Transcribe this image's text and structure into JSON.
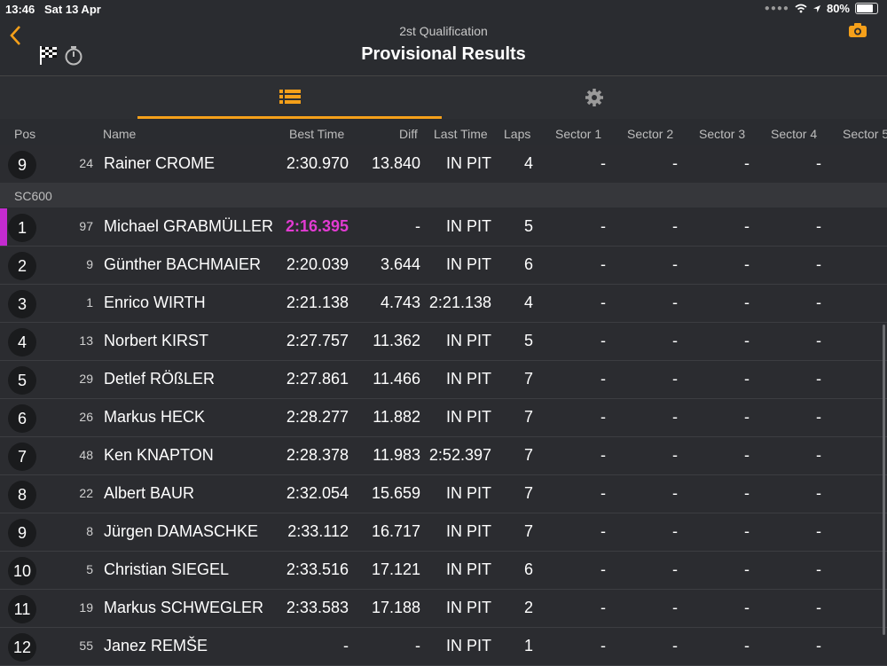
{
  "status": {
    "time": "13:46",
    "date": "Sat 13 Apr",
    "battery": "80%",
    "battery_level": 0.8
  },
  "header": {
    "subtitle": "2st Qualification",
    "title": "Provisional Results"
  },
  "columns": {
    "pos": "Pos",
    "name": "Name",
    "best": "Best Time",
    "diff": "Diff",
    "last": "Last Time",
    "laps": "Laps",
    "s1": "Sector 1",
    "s2": "Sector 2",
    "s3": "Sector 3",
    "s4": "Sector 4",
    "s5": "Sector 5"
  },
  "top_row": {
    "pos": "9",
    "num": "24",
    "name": "Rainer CROME",
    "best": "2:30.970",
    "diff": "13.840",
    "last": "IN PIT",
    "laps": "4",
    "s1": "-",
    "s2": "-",
    "s3": "-",
    "s4": "-"
  },
  "section": "SC600",
  "rows": [
    {
      "pos": "1",
      "num": "97",
      "name": "Michael GRABMÜLLER",
      "best": "2:16.395",
      "diff": "-",
      "last": "IN PIT",
      "laps": "5",
      "s1": "-",
      "s2": "-",
      "s3": "-",
      "s4": "-"
    },
    {
      "pos": "2",
      "num": "9",
      "name": "Günther BACHMAIER",
      "best": "2:20.039",
      "diff": "3.644",
      "last": "IN PIT",
      "laps": "6",
      "s1": "-",
      "s2": "-",
      "s3": "-",
      "s4": "-"
    },
    {
      "pos": "3",
      "num": "1",
      "name": "Enrico WIRTH",
      "best": "2:21.138",
      "diff": "4.743",
      "last": "2:21.138",
      "laps": "4",
      "s1": "-",
      "s2": "-",
      "s3": "-",
      "s4": "-"
    },
    {
      "pos": "4",
      "num": "13",
      "name": "Norbert KIRST",
      "best": "2:27.757",
      "diff": "11.362",
      "last": "IN PIT",
      "laps": "5",
      "s1": "-",
      "s2": "-",
      "s3": "-",
      "s4": "-"
    },
    {
      "pos": "5",
      "num": "29",
      "name": "Detlef RÖßLER",
      "best": "2:27.861",
      "diff": "11.466",
      "last": "IN PIT",
      "laps": "7",
      "s1": "-",
      "s2": "-",
      "s3": "-",
      "s4": "-"
    },
    {
      "pos": "6",
      "num": "26",
      "name": "Markus HECK",
      "best": "2:28.277",
      "diff": "11.882",
      "last": "IN PIT",
      "laps": "7",
      "s1": "-",
      "s2": "-",
      "s3": "-",
      "s4": "-"
    },
    {
      "pos": "7",
      "num": "48",
      "name": "Ken KNAPTON",
      "best": "2:28.378",
      "diff": "11.983",
      "last": "2:52.397",
      "laps": "7",
      "s1": "-",
      "s2": "-",
      "s3": "-",
      "s4": "-"
    },
    {
      "pos": "8",
      "num": "22",
      "name": "Albert BAUR",
      "best": "2:32.054",
      "diff": "15.659",
      "last": "IN PIT",
      "laps": "7",
      "s1": "-",
      "s2": "-",
      "s3": "-",
      "s4": "-"
    },
    {
      "pos": "9",
      "num": "8",
      "name": "Jürgen DAMASCHKE",
      "best": "2:33.112",
      "diff": "16.717",
      "last": "IN PIT",
      "laps": "7",
      "s1": "-",
      "s2": "-",
      "s3": "-",
      "s4": "-"
    },
    {
      "pos": "10",
      "num": "5",
      "name": "Christian SIEGEL",
      "best": "2:33.516",
      "diff": "17.121",
      "last": "IN PIT",
      "laps": "6",
      "s1": "-",
      "s2": "-",
      "s3": "-",
      "s4": "-"
    },
    {
      "pos": "11",
      "num": "19",
      "name": "Markus SCHWEGLER",
      "best": "2:33.583",
      "diff": "17.188",
      "last": "IN PIT",
      "laps": "2",
      "s1": "-",
      "s2": "-",
      "s3": "-",
      "s4": "-"
    },
    {
      "pos": "12",
      "num": "55",
      "name": "Janez REMŠE",
      "best": "-",
      "diff": "-",
      "last": "IN PIT",
      "laps": "1",
      "s1": "-",
      "s2": "-",
      "s3": "-",
      "s4": "-"
    }
  ],
  "colors": {
    "accent": "#f5a01a",
    "fastest": "#e23bd2",
    "background": "#2a2c30"
  }
}
